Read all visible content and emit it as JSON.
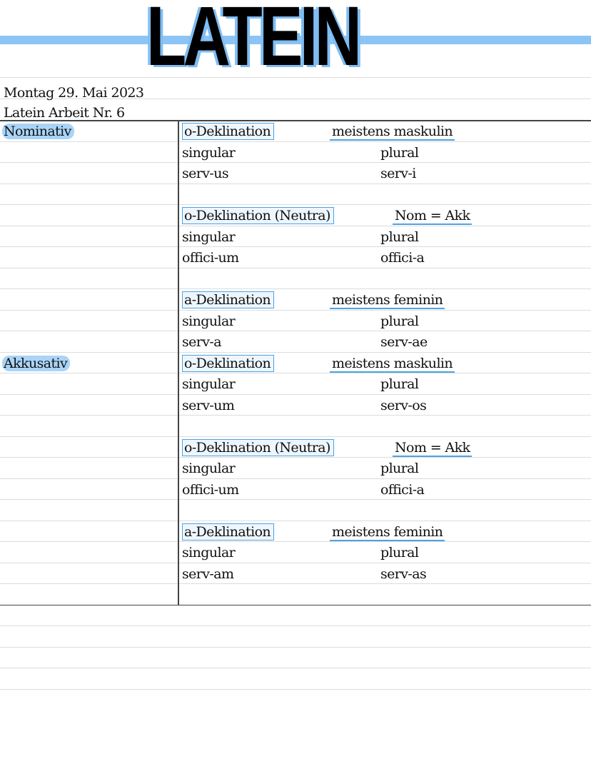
{
  "title": "LATEIN",
  "header": {
    "date": "Montag 29. Mai 2023",
    "subtitle": "Latein Arbeit Nr. 6"
  },
  "colors": {
    "accent": "#4aa3e6",
    "highlight": "#a9d4f7"
  },
  "sections": [
    {
      "case": "Nominativ",
      "blocks": [
        {
          "heading": "o-Deklination",
          "note": "meistens maskulin",
          "singular_label": "singular",
          "plural_label": "plural",
          "singular": "serv-us",
          "plural": "serv-i"
        },
        {
          "heading": "o-Deklination (Neutra)",
          "note": "Nom = Akk",
          "singular_label": "singular",
          "plural_label": "plural",
          "singular": "offici-um",
          "plural": "offici-a"
        },
        {
          "heading": "a-Deklination",
          "note": "meistens feminin",
          "singular_label": "singular",
          "plural_label": "plural",
          "singular": "serv-a",
          "plural": "serv-ae"
        }
      ]
    },
    {
      "case": "Akkusativ",
      "blocks": [
        {
          "heading": "o-Deklination",
          "note": "meistens maskulin",
          "singular_label": "singular",
          "plural_label": "plural",
          "singular": "serv-um",
          "plural": "serv-os"
        },
        {
          "heading": "o-Deklination (Neutra)",
          "note": "Nom = Akk",
          "singular_label": "singular",
          "plural_label": "plural",
          "singular": "offici-um",
          "plural": "offici-a"
        },
        {
          "heading": "a-Deklination",
          "note": "meistens feminin",
          "singular_label": "singular",
          "plural_label": "plural",
          "singular": "serv-am",
          "plural": "serv-as"
        }
      ]
    }
  ]
}
